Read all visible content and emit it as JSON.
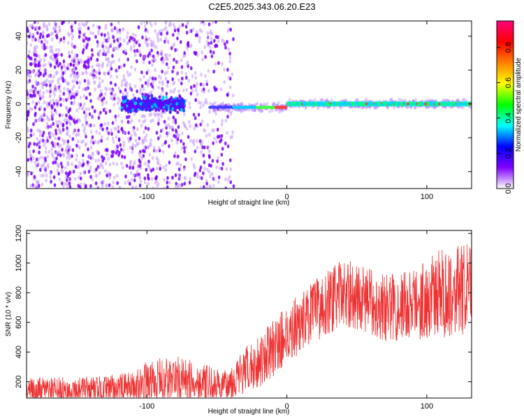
{
  "title": "C2E5.2025.343.06.20.E23",
  "chart_data": [
    {
      "type": "heatmap",
      "name": "spectrogram",
      "xlabel": "Height of straight line (km)",
      "ylabel": "Frequency (Hz)",
      "xlim": [
        -186,
        132
      ],
      "ylim": [
        -50,
        49
      ],
      "xticks": [
        -100,
        0,
        100
      ],
      "yticks": [
        -40,
        -20,
        0,
        20,
        40
      ],
      "colorbar": {
        "label": "Normalized spectral amplitude",
        "range": [
          0.0,
          0.95
        ],
        "ticks": [
          0.0,
          0.2,
          0.4,
          0.6,
          0.8
        ],
        "tick_labels": [
          "0.0",
          "0.2",
          "0.4",
          "0.6",
          "0.8"
        ],
        "colors": [
          "#ffffff",
          "#8000ff",
          "#0000ff",
          "#00ffff",
          "#00ff00",
          "#ffff00",
          "#ff8000",
          "#ff0000",
          "#ff0080"
        ]
      },
      "features": [
        {
          "description": "diffuse noise speckle",
          "x_range": [
            -186,
            -38
          ],
          "freq_range": [
            -50,
            49
          ],
          "amplitude": 0.1
        },
        {
          "description": "intense cluster",
          "x_range": [
            -118,
            -73
          ],
          "freq_center": 0,
          "amplitude": 0.3
        },
        {
          "description": "signal line",
          "x_range": [
            -55,
            0
          ],
          "freq_center": -2,
          "amplitude": 0.6
        },
        {
          "description": "signal line",
          "x_range": [
            0,
            132
          ],
          "freq_center": 0,
          "amplitude": 0.95
        }
      ]
    },
    {
      "type": "line",
      "name": "snr",
      "xlabel": "Height of straight line (km)",
      "ylabel": "SNR (10 * v/v)",
      "xlim": [
        -186,
        132
      ],
      "ylim": [
        90,
        1220
      ],
      "xticks": [
        -100,
        0,
        100
      ],
      "yticks": [
        200,
        400,
        600,
        800,
        1000,
        1200
      ],
      "color": "#ee3333",
      "envelope": {
        "x": [
          -186,
          -130,
          -110,
          -100,
          -80,
          -60,
          -45,
          -35,
          -20,
          -10,
          0,
          20,
          40,
          55,
          70,
          90,
          110,
          132
        ],
        "mean": [
          130,
          140,
          160,
          200,
          220,
          190,
          160,
          230,
          340,
          420,
          520,
          680,
          800,
          760,
          700,
          720,
          800,
          820
        ],
        "amp": [
          95,
          100,
          110,
          140,
          160,
          130,
          110,
          150,
          180,
          190,
          200,
          210,
          230,
          220,
          230,
          250,
          300,
          320
        ]
      }
    }
  ]
}
